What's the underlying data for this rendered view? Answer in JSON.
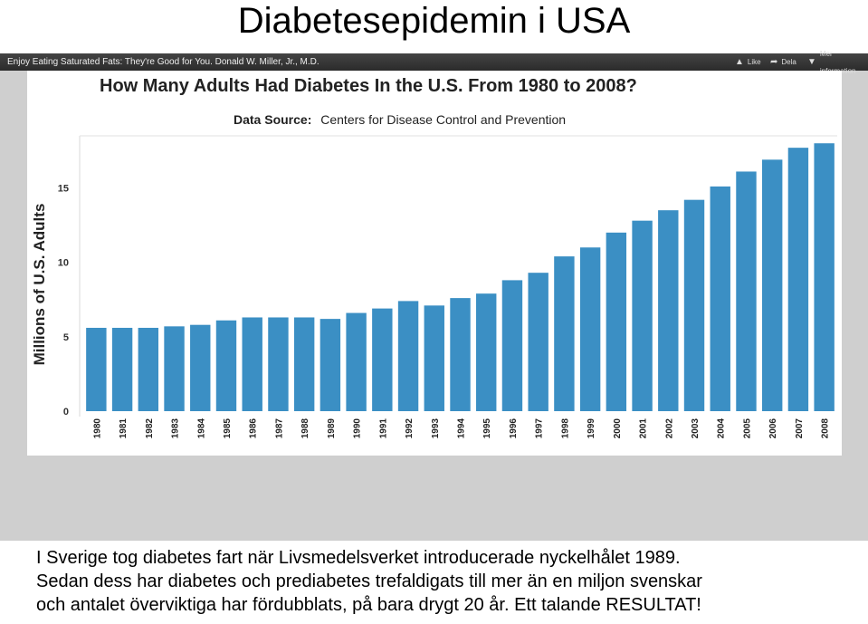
{
  "slide": {
    "title": "Diabetesepidemin i USA",
    "caption_lines": [
      "I Sverige tog diabetes fart när Livsmedelsverket introducerade nyckelhålet 1989.",
      "Sedan dess har diabetes och prediabetes trefaldigats till mer än en miljon svenskar",
      "och antalet överviktiga har fördubblats, på bara drygt 20 år. Ett talande RESULTAT!"
    ]
  },
  "video": {
    "title": "Enjoy Eating Saturated Fats: They're Good for You. Donald W. Miller, Jr., M.D.",
    "controls": {
      "like_label": "Like",
      "share_label": "Dela",
      "more_label": "Mer information"
    },
    "icons": {
      "like": "thumbs-up-icon",
      "share": "share-arrow-icon",
      "more": "down-arrow-icon"
    }
  },
  "chart_data": {
    "type": "bar",
    "title": "How Many Adults Had Diabetes In the U.S. From 1980 to 2008?",
    "source_label": "Data Source:",
    "source_value": "Centers for Disease Control and Prevention",
    "ylabel": "Millions of U.S. Adults",
    "xlabel": "",
    "ylim": [
      0,
      18.5
    ],
    "yticks": [
      0,
      5,
      10,
      15
    ],
    "bar_color": "#3b8fc4",
    "grid": false,
    "categories": [
      "1980",
      "1981",
      "1982",
      "1983",
      "1984",
      "1985",
      "1986",
      "1987",
      "1988",
      "1989",
      "1990",
      "1991",
      "1992",
      "1993",
      "1994",
      "1995",
      "1996",
      "1997",
      "1998",
      "1999",
      "2000",
      "2001",
      "2002",
      "2003",
      "2004",
      "2005",
      "2006",
      "2007",
      "2008"
    ],
    "values": [
      5.6,
      5.6,
      5.6,
      5.7,
      5.8,
      6.1,
      6.3,
      6.3,
      6.3,
      6.2,
      6.6,
      6.9,
      7.4,
      7.1,
      7.6,
      7.9,
      8.8,
      9.3,
      10.4,
      11.0,
      12.0,
      12.8,
      13.5,
      14.2,
      15.1,
      16.1,
      16.9,
      17.7,
      18.0
    ]
  }
}
